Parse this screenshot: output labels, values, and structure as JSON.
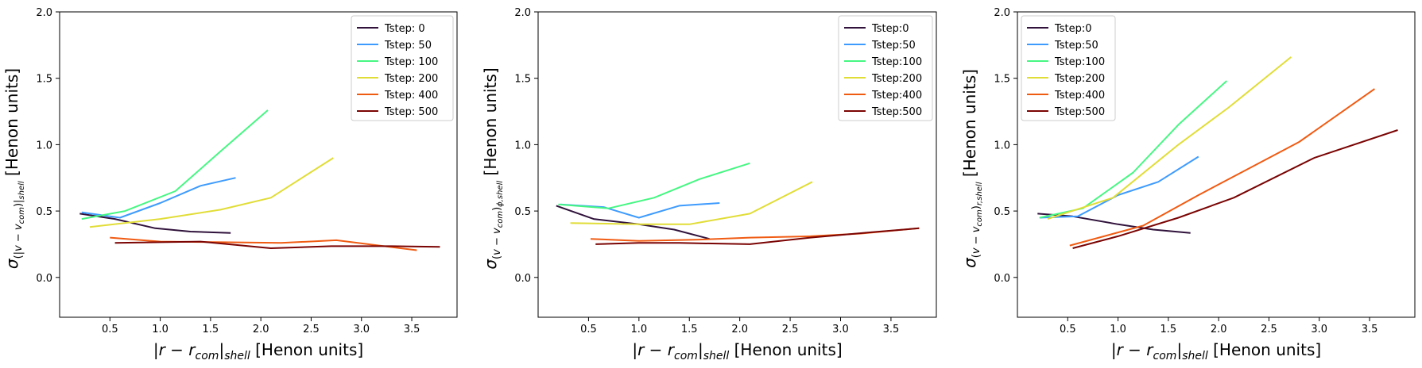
{
  "colors": {
    "s0": "#30123b",
    "s50": "#3e9bfe",
    "s100": "#46f783",
    "s200": "#e1dd37",
    "s400": "#f05b12",
    "s500": "#7a0403"
  },
  "chart_data": [
    {
      "type": "line",
      "xlabel": "|r − r_com|_shell [Henon units]",
      "ylabel": "σ(|v − v_com|)_shell [Henon units]",
      "xlim": [
        0.0,
        3.95
      ],
      "ylim": [
        -0.3,
        2.0
      ],
      "xticks": [
        "0.5",
        "1.0",
        "1.5",
        "2.0",
        "2.5",
        "3.0",
        "3.5"
      ],
      "yticks": [
        "0.0",
        "0.5",
        "1.0",
        "1.5",
        "2.0"
      ],
      "legend_position": "top-right",
      "series": [
        {
          "name": "Tstep: 0",
          "color": "#30123b",
          "x": [
            0.2,
            0.55,
            0.95,
            1.3,
            1.7
          ],
          "y": [
            0.48,
            0.44,
            0.37,
            0.345,
            0.335
          ]
        },
        {
          "name": "Tstep: 50",
          "color": "#3e9bfe",
          "x": [
            0.22,
            0.6,
            1.0,
            1.4,
            1.75
          ],
          "y": [
            0.49,
            0.45,
            0.56,
            0.69,
            0.75
          ]
        },
        {
          "name": "Tstep: 100",
          "color": "#46f783",
          "x": [
            0.22,
            0.65,
            1.15,
            1.6,
            2.07
          ],
          "y": [
            0.44,
            0.5,
            0.65,
            0.95,
            1.26
          ]
        },
        {
          "name": "Tstep: 200",
          "color": "#e1dd37",
          "x": [
            0.3,
            1.0,
            1.6,
            2.1,
            2.72
          ],
          "y": [
            0.38,
            0.44,
            0.51,
            0.6,
            0.9
          ]
        },
        {
          "name": "Tstep: 400",
          "color": "#f05b12",
          "x": [
            0.5,
            1.0,
            1.6,
            2.2,
            2.75,
            3.55
          ],
          "y": [
            0.3,
            0.27,
            0.265,
            0.26,
            0.28,
            0.205
          ]
        },
        {
          "name": "Tstep: 500",
          "color": "#7a0403",
          "x": [
            0.55,
            1.0,
            1.4,
            2.1,
            2.7,
            3.3,
            3.78
          ],
          "y": [
            0.26,
            0.265,
            0.27,
            0.22,
            0.235,
            0.235,
            0.23
          ]
        }
      ]
    },
    {
      "type": "line",
      "xlabel": "|r − r_com|_shell [Henon units]",
      "ylabel": "σ(v − v_com)_ϕ,shell [Henon units]",
      "xlim": [
        0.0,
        3.95
      ],
      "ylim": [
        -0.3,
        2.0
      ],
      "xticks": [
        "0.5",
        "1.0",
        "1.5",
        "2.0",
        "2.5",
        "3.0",
        "3.5"
      ],
      "yticks": [
        "0.0",
        "0.5",
        "1.0",
        "1.5",
        "2.0"
      ],
      "legend_position": "top-right",
      "series": [
        {
          "name": "Tstep:0",
          "color": "#30123b",
          "x": [
            0.18,
            0.55,
            1.0,
            1.35,
            1.7
          ],
          "y": [
            0.54,
            0.44,
            0.4,
            0.36,
            0.29
          ]
        },
        {
          "name": "Tstep:50",
          "color": "#3e9bfe",
          "x": [
            0.22,
            0.65,
            1.0,
            1.4,
            1.8
          ],
          "y": [
            0.55,
            0.53,
            0.45,
            0.54,
            0.56
          ]
        },
        {
          "name": "Tstep:100",
          "color": "#46f783",
          "x": [
            0.2,
            0.7,
            1.15,
            1.6,
            2.1
          ],
          "y": [
            0.55,
            0.52,
            0.6,
            0.74,
            0.86
          ]
        },
        {
          "name": "Tstep:200",
          "color": "#e1dd37",
          "x": [
            0.32,
            1.0,
            1.5,
            2.1,
            2.72
          ],
          "y": [
            0.41,
            0.4,
            0.4,
            0.48,
            0.72
          ]
        },
        {
          "name": "Tstep:400",
          "color": "#f05b12",
          "x": [
            0.52,
            1.0,
            1.6,
            2.1,
            2.7,
            3.2,
            3.78
          ],
          "y": [
            0.29,
            0.275,
            0.285,
            0.3,
            0.31,
            0.33,
            0.37
          ]
        },
        {
          "name": "Tstep:500",
          "color": "#7a0403",
          "x": [
            0.57,
            1.0,
            1.4,
            2.1,
            2.7,
            3.3,
            3.78
          ],
          "y": [
            0.25,
            0.26,
            0.26,
            0.25,
            0.3,
            0.34,
            0.37
          ]
        }
      ]
    },
    {
      "type": "line",
      "xlabel": "|r − r_com|_shell [Henon units]",
      "ylabel": "σ(v − v_com)_r,shell [Henon units]",
      "xlim": [
        0.0,
        3.95
      ],
      "ylim": [
        -0.3,
        2.0
      ],
      "xticks": [
        "0.5",
        "1.0",
        "1.5",
        "2.0",
        "2.5",
        "3.0",
        "3.5"
      ],
      "yticks": [
        "0.0",
        "0.5",
        "1.0",
        "1.5",
        "2.0"
      ],
      "legend_position": "top-left",
      "series": [
        {
          "name": "Tstep:0",
          "color": "#30123b",
          "x": [
            0.2,
            0.55,
            1.0,
            1.35,
            1.72
          ],
          "y": [
            0.48,
            0.46,
            0.4,
            0.36,
            0.335
          ]
        },
        {
          "name": "Tstep:50",
          "color": "#3e9bfe",
          "x": [
            0.22,
            0.6,
            1.0,
            1.4,
            1.8
          ],
          "y": [
            0.45,
            0.46,
            0.62,
            0.72,
            0.91
          ]
        },
        {
          "name": "Tstep:100",
          "color": "#46f783",
          "x": [
            0.22,
            0.65,
            1.15,
            1.6,
            2.08
          ],
          "y": [
            0.45,
            0.52,
            0.79,
            1.15,
            1.48
          ]
        },
        {
          "name": "Tstep:200",
          "color": "#e1dd37",
          "x": [
            0.3,
            0.95,
            1.6,
            2.1,
            2.72
          ],
          "y": [
            0.44,
            0.6,
            1.0,
            1.28,
            1.66
          ]
        },
        {
          "name": "Tstep:400",
          "color": "#f05b12",
          "x": [
            0.52,
            1.25,
            1.8,
            2.3,
            2.8,
            3.55
          ],
          "y": [
            0.24,
            0.39,
            0.62,
            0.82,
            1.02,
            1.42
          ]
        },
        {
          "name": "Tstep:500",
          "color": "#7a0403",
          "x": [
            0.55,
            1.0,
            1.6,
            2.15,
            2.95,
            3.78
          ],
          "y": [
            0.22,
            0.31,
            0.45,
            0.6,
            0.9,
            1.11
          ]
        }
      ]
    }
  ]
}
